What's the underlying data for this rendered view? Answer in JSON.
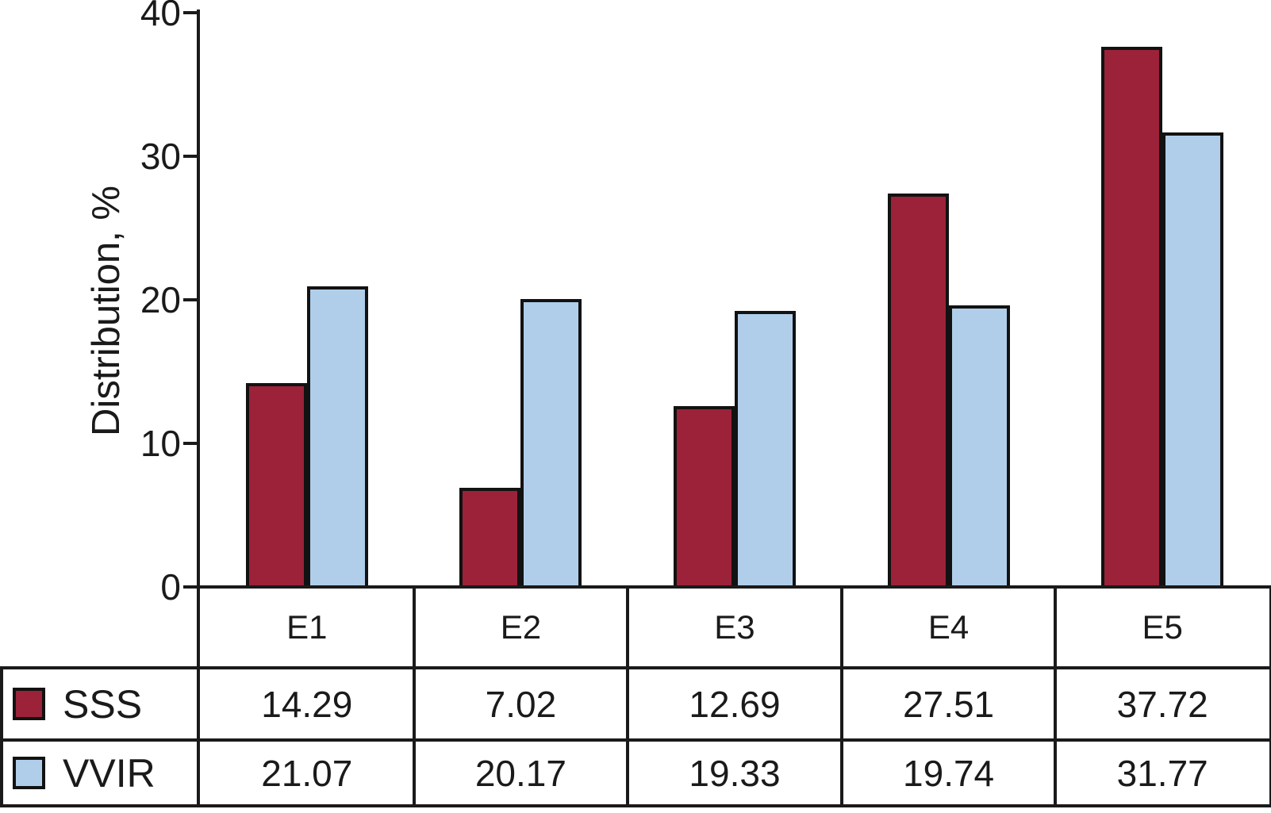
{
  "figure": {
    "background_color": "#ffffff",
    "line_color": "#1a1a1a"
  },
  "chart_data": {
    "type": "bar",
    "title": "",
    "xlabel": "",
    "ylabel": "Distribution, %",
    "categories": [
      "E1",
      "E2",
      "E3",
      "E4",
      "E5"
    ],
    "series": [
      {
        "name": "SSS",
        "color": "#9B2238",
        "values": [
          14.29,
          7.02,
          12.69,
          27.51,
          37.72
        ]
      },
      {
        "name": "VVIR",
        "color": "#B0CEEA",
        "values": [
          21.07,
          20.17,
          19.33,
          19.74,
          31.77
        ]
      }
    ],
    "ylim": [
      0,
      40
    ],
    "yticks": [
      0,
      10,
      20,
      30,
      40
    ],
    "grid": false,
    "legend_position": "table-rows-left",
    "bar_outline_color": "#121212"
  },
  "table": {
    "column_headers": [
      "E1",
      "E2",
      "E3",
      "E4",
      "E5"
    ],
    "rows": [
      {
        "label": "SSS",
        "swatch_color": "#9B2238",
        "values": [
          "14.29",
          "7.02",
          "12.69",
          "27.51",
          "37.72"
        ]
      },
      {
        "label": "VVIR",
        "swatch_color": "#B0CEEA",
        "values": [
          "21.07",
          "20.17",
          "19.33",
          "19.74",
          "31.77"
        ]
      }
    ]
  }
}
